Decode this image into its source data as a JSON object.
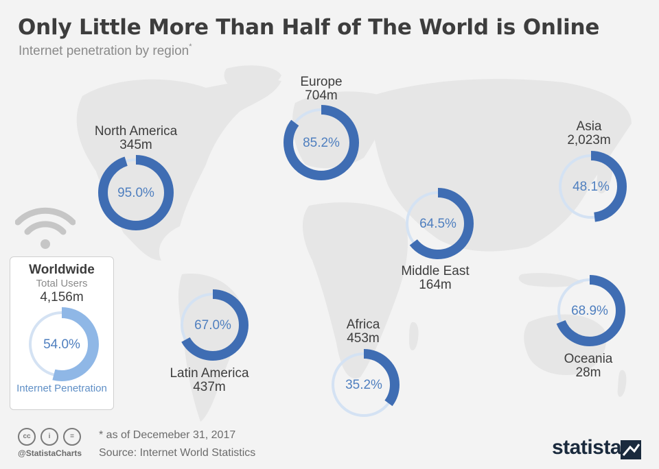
{
  "header": {
    "title": "Only Little More Than Half of The World is Online",
    "subtitle": "Internet penetration by region",
    "subtitle_mark": "*"
  },
  "colors": {
    "ring_fill": "#3f6db3",
    "ring_track": "#d4e2f3",
    "ring_text": "#4f7fbf",
    "worldwide_fill": "#8fb7e6",
    "map": "#e7e7e7",
    "background": "#f3f3f3"
  },
  "chart_data": {
    "type": "donut",
    "title": "Only Little More Than Half of The World is Online",
    "subtitle": "Internet penetration by region",
    "series": [
      {
        "name": "North America",
        "users": "345m",
        "penetration": 95.0,
        "label": "95.0%"
      },
      {
        "name": "Europe",
        "users": "704m",
        "penetration": 85.2,
        "label": "85.2%"
      },
      {
        "name": "Asia",
        "users": "2,023m",
        "penetration": 48.1,
        "label": "48.1%"
      },
      {
        "name": "Middle East",
        "users": "164m",
        "penetration": 64.5,
        "label": "64.5%"
      },
      {
        "name": "Latin America",
        "users": "437m",
        "penetration": 67.0,
        "label": "67.0%"
      },
      {
        "name": "Africa",
        "users": "453m",
        "penetration": 35.2,
        "label": "35.2%"
      },
      {
        "name": "Oceania",
        "users": "28m",
        "penetration": 68.9,
        "label": "68.9%"
      }
    ],
    "worldwide": {
      "title": "Worldwide",
      "users_label": "Total Users",
      "users": "4,156m",
      "penetration": 54.0,
      "label": "54.0%",
      "caption": "Internet Penetration"
    }
  },
  "footer": {
    "note": "* as of Decemeber 31, 2017",
    "source": "Source: Internet World Statistics",
    "handle": "@StatistaCharts",
    "brand": "statista",
    "license_icons": [
      "cc-icon",
      "by-icon",
      "nd-icon"
    ],
    "license_glyphs": [
      "cc",
      "i",
      "="
    ]
  }
}
